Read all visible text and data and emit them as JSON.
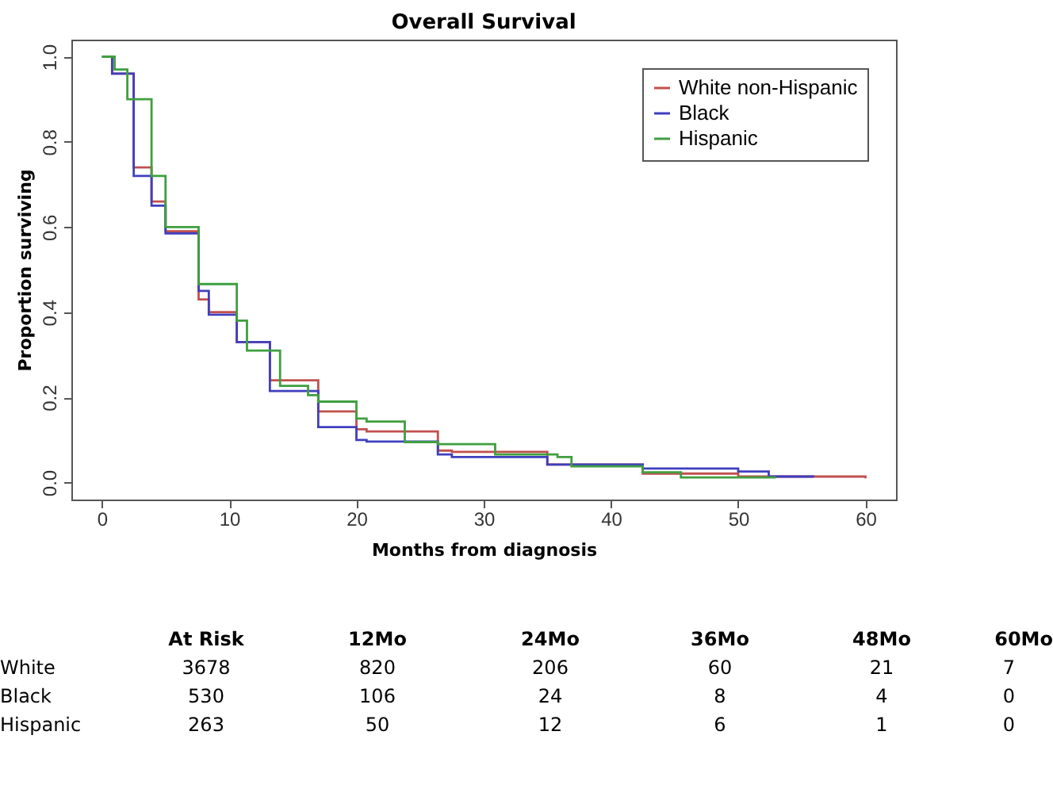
{
  "chart_data": {
    "type": "step",
    "title": "Overall Survival",
    "xlabel": "Months from diagnosis",
    "ylabel": "Proportion surviving",
    "xlim": [
      -2.4,
      62.4
    ],
    "ylim": [
      -0.04,
      1.04
    ],
    "xticks": [
      0,
      10,
      20,
      30,
      40,
      50,
      60
    ],
    "yticks": [
      {
        "value": 0,
        "label": "0.0"
      },
      0.2,
      0.4,
      0.6,
      0.8,
      {
        "value": 1,
        "label": "1.0"
      }
    ],
    "legend": "top right",
    "grid": false,
    "line_style": "solid",
    "marker": "none",
    "series": [
      {
        "name": "White non-Hispanic",
        "color": "#c0504d",
        "x": [
          0,
          0.8,
          2.5,
          3.9,
          5.0,
          7.6,
          8.4,
          10.6,
          13.2,
          17.0,
          20.0,
          20.8,
          26.4,
          27.5,
          35.0,
          42.5,
          50.0,
          60.0
        ],
        "values": [
          1,
          0.96,
          0.74,
          0.66,
          0.59,
          0.43,
          0.4,
          0.33,
          0.24,
          0.167,
          0.125,
          0.12,
          0.075,
          0.072,
          0.042,
          0.021,
          0.014,
          0.01
        ]
      },
      {
        "name": "Black",
        "color": "#3f3fbf",
        "x": [
          0.5,
          0.8,
          2.5,
          3.9,
          5.0,
          7.6,
          8.4,
          10.6,
          13.2,
          17.0,
          20.0,
          20.8,
          26.4,
          27.5,
          35.0,
          42.5,
          50.0,
          52.4,
          55.9
        ],
        "values": [
          1,
          0.96,
          0.72,
          0.65,
          0.585,
          0.45,
          0.394,
          0.33,
          0.215,
          0.13,
          0.1,
          0.096,
          0.066,
          0.06,
          0.042,
          0.033,
          0.026,
          0.014,
          0.012
        ]
      },
      {
        "name": "Hispanic",
        "color": "#3f9f3f",
        "x": [
          0,
          1.0,
          2.0,
          3.9,
          5.0,
          7.6,
          10.6,
          11.4,
          14.0,
          16.2,
          17.0,
          20.0,
          20.8,
          23.8,
          26.4,
          30.9,
          35.8,
          36.9,
          42.5,
          45.5,
          52.9
        ],
        "values": [
          1,
          0.97,
          0.9,
          0.72,
          0.6,
          0.466,
          0.38,
          0.31,
          0.227,
          0.205,
          0.19,
          0.15,
          0.143,
          0.095,
          0.09,
          0.066,
          0.06,
          0.038,
          0.024,
          0.012,
          0.01
        ]
      }
    ],
    "annotations": [
      "At Risk",
      "12Mo",
      "24Mo",
      "36Mo",
      "48Mo",
      "60Mo",
      "White",
      "3678",
      "820",
      "206",
      "60",
      "21",
      "7",
      "Black",
      "530",
      "106",
      "24",
      "8",
      "4",
      "0",
      "Hispanic",
      "263",
      "50",
      "12",
      "6",
      "1",
      "0"
    ]
  }
}
